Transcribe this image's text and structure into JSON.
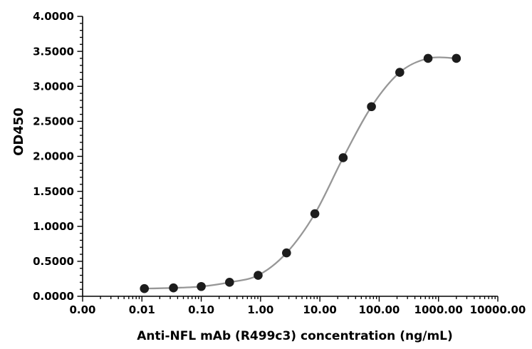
{
  "figure": {
    "background": "#ffffff"
  },
  "chart_data": {
    "type": "scatter",
    "title": "",
    "xlabel": "Anti-NFL mAb (R499c3) concentration (ng/mL)",
    "ylabel": "OD450",
    "x_scale": "log10",
    "xlim": [
      0.001,
      10000
    ],
    "ylim": [
      0,
      4
    ],
    "grid": false,
    "legend": null,
    "axis_color": "#000000",
    "marker_color": "#1c1c1c",
    "line_color": "#979797",
    "x_ticks": [
      {
        "value": 0.001,
        "label": "0.00"
      },
      {
        "value": 0.01,
        "label": "0.01"
      },
      {
        "value": 0.1,
        "label": "0.10"
      },
      {
        "value": 1,
        "label": "1.00"
      },
      {
        "value": 10,
        "label": "10.00"
      },
      {
        "value": 100,
        "label": "100.00"
      },
      {
        "value": 1000,
        "label": "1000.00"
      },
      {
        "value": 10000,
        "label": "10000.00"
      }
    ],
    "y_ticks": [
      {
        "value": 0,
        "label": "0.0000"
      },
      {
        "value": 0.5,
        "label": "0.5000"
      },
      {
        "value": 1,
        "label": "1.0000"
      },
      {
        "value": 1.5,
        "label": "1.5000"
      },
      {
        "value": 2,
        "label": "2.0000"
      },
      {
        "value": 2.5,
        "label": "2.5000"
      },
      {
        "value": 3,
        "label": "3.0000"
      },
      {
        "value": 3.5,
        "label": "3.5000"
      },
      {
        "value": 4,
        "label": "4.0000"
      }
    ],
    "y_minor_step": 0.1,
    "x_minor_ticks": "log-decade multiples 2-9 of each decade from 0.001 to 1000",
    "series": [
      {
        "marker": "circle",
        "points": [
          {
            "x": 0.011,
            "y": 0.11
          },
          {
            "x": 0.034,
            "y": 0.12
          },
          {
            "x": 0.1,
            "y": 0.14
          },
          {
            "x": 0.3,
            "y": 0.2
          },
          {
            "x": 0.91,
            "y": 0.3
          },
          {
            "x": 2.74,
            "y": 0.62
          },
          {
            "x": 8.23,
            "y": 1.18
          },
          {
            "x": 24.69,
            "y": 1.98
          },
          {
            "x": 74.07,
            "y": 2.71
          },
          {
            "x": 222.22,
            "y": 3.2
          },
          {
            "x": 666.67,
            "y": 3.4
          },
          {
            "x": 2000,
            "y": 3.4
          }
        ]
      }
    ]
  }
}
